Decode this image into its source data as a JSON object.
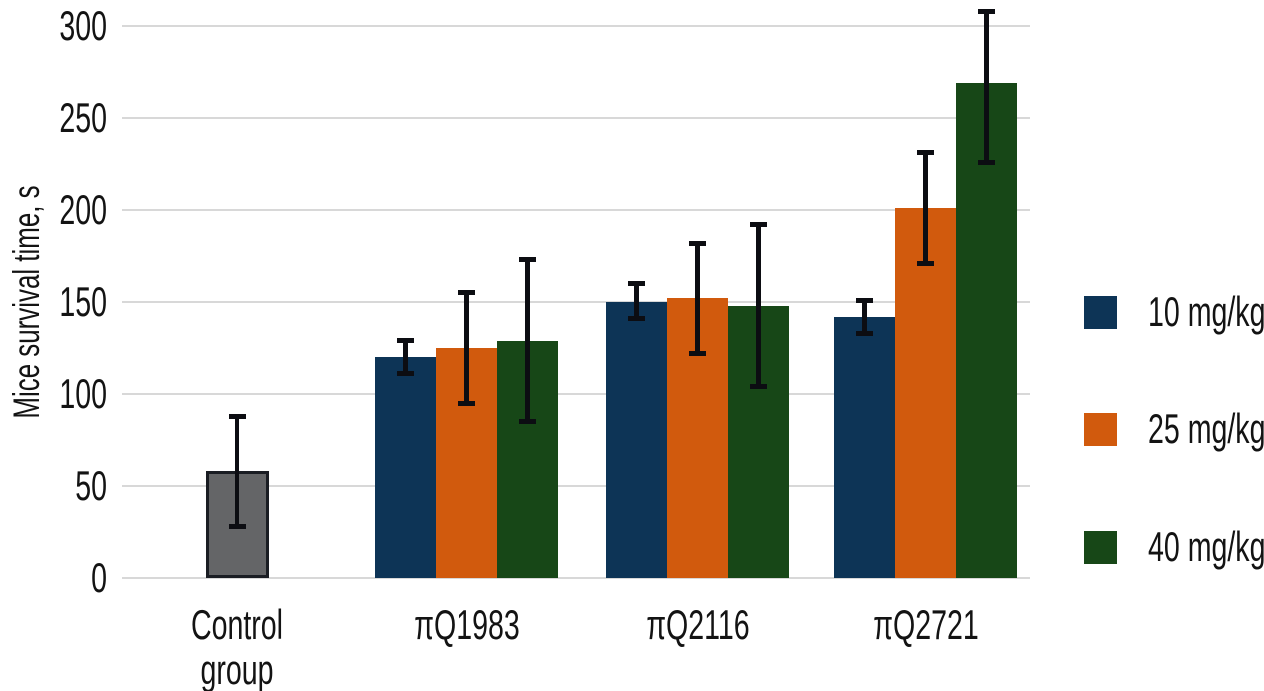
{
  "chart_data": {
    "type": "bar",
    "title": "",
    "ylabel": "Mice survival time, s",
    "xlabel": "",
    "categories": [
      "Control group",
      "πQ1983",
      "πQ2116",
      "πQ2721"
    ],
    "yticks": [
      0,
      50,
      100,
      150,
      200,
      250,
      300
    ],
    "ylim": [
      0,
      300
    ],
    "grid": true,
    "legend_position": "right",
    "control": {
      "name": "Control group",
      "color": "#646567",
      "border_color": "#1a1d23",
      "value": 58,
      "err_lo": 28,
      "err_hi": 88
    },
    "series": [
      {
        "name": "10 mg/kg",
        "color": "#0d3456",
        "values": [
          null,
          120,
          150,
          142
        ],
        "err_lo": [
          null,
          111,
          141,
          133
        ],
        "err_hi": [
          null,
          129,
          160,
          151
        ]
      },
      {
        "name": "25 mg/kg",
        "color": "#d15a0d",
        "values": [
          null,
          125,
          152,
          201
        ],
        "err_lo": [
          null,
          95,
          122,
          171
        ],
        "err_hi": [
          null,
          155,
          182,
          231
        ]
      },
      {
        "name": "40 mg/kg",
        "color": "#174717",
        "values": [
          null,
          129,
          148,
          269
        ],
        "err_lo": [
          null,
          85,
          104,
          226
        ],
        "err_hi": [
          null,
          173,
          192,
          308
        ]
      }
    ],
    "error_bar_color": "#0c0d12",
    "gridline_color": "#d8d8d8",
    "text_color": "#131313"
  }
}
